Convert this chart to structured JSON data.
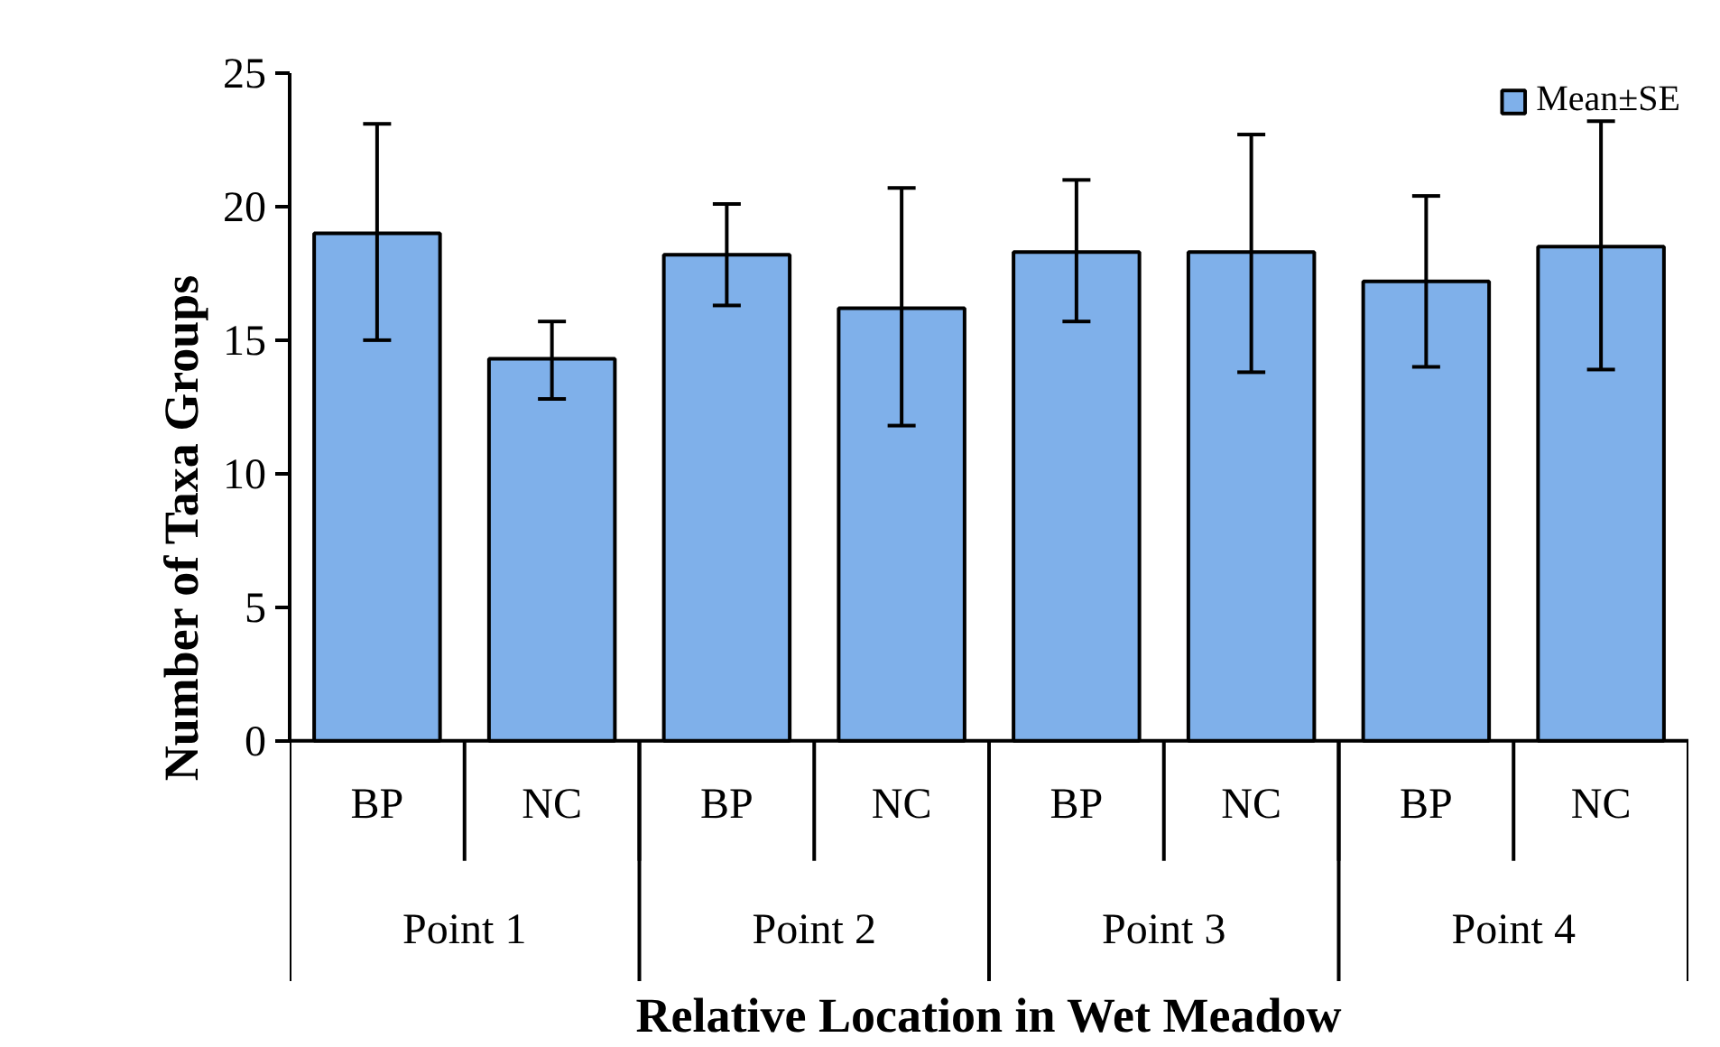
{
  "chart_data": {
    "type": "bar",
    "xlabel": "Relative Location in Wet Meadow",
    "ylabel": "Number of Taxa Groups",
    "categories": [
      "BP",
      "NC",
      "BP",
      "NC",
      "BP",
      "NC",
      "BP",
      "NC"
    ],
    "series": [
      {
        "name": "Mean±SE",
        "color": "#7fb0ea",
        "values": [
          19.0,
          14.3,
          18.2,
          16.2,
          18.3,
          18.3,
          17.2,
          18.5
        ],
        "errors": [
          [
            15.0,
            23.1
          ],
          [
            12.8,
            15.7
          ],
          [
            16.3,
            20.1
          ],
          [
            11.8,
            20.7
          ],
          [
            15.7,
            21.0
          ],
          [
            13.8,
            22.7
          ],
          [
            14.0,
            20.4
          ],
          [
            13.9,
            23.2
          ]
        ]
      }
    ],
    "annotations": [
      "Point 1",
      "Point 2",
      "Point 3",
      "Point 4"
    ],
    "ylim": [
      0,
      25
    ],
    "yticks": [
      0,
      5,
      10,
      15,
      20,
      25
    ],
    "grid": false,
    "legend": "top right"
  }
}
